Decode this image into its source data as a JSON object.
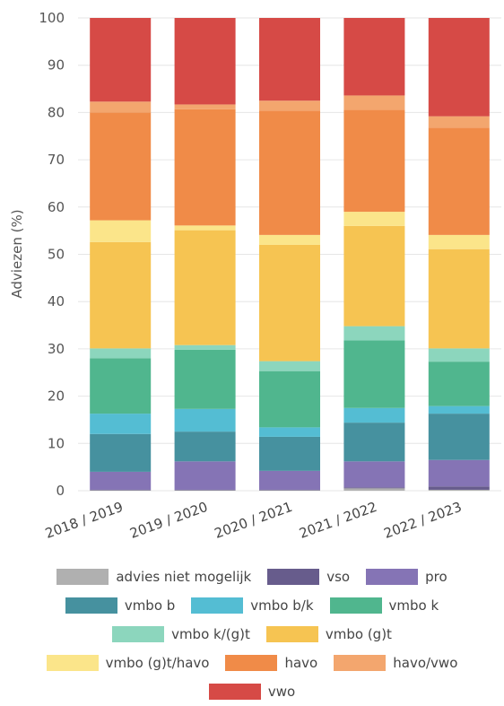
{
  "chart_data": {
    "type": "bar",
    "stacked": true,
    "ylabel": "Adviezen (%)",
    "ylim": [
      0,
      100
    ],
    "yticks": [
      "0",
      "10",
      "20",
      "30",
      "40",
      "50",
      "60",
      "70",
      "80",
      "90",
      "100"
    ],
    "grid": "horizontal",
    "legend_position": "bottom",
    "categories": [
      "2018 / 2019",
      "2019 / 2020",
      "2020 / 2021",
      "2021 / 2022",
      "2022 / 2023"
    ],
    "series": [
      {
        "name": "advies niet mogelijk",
        "color": "#b0b0b0",
        "values": [
          0.1,
          0.1,
          0.1,
          0.5,
          0.2
        ]
      },
      {
        "name": "vso",
        "color": "#675c8c",
        "values": [
          0.1,
          0.1,
          0.1,
          0.2,
          0.7
        ]
      },
      {
        "name": "pro",
        "color": "#8574b5",
        "values": [
          3.8,
          6.0,
          4.0,
          5.5,
          5.6
        ]
      },
      {
        "name": "vmbo b",
        "color": "#46919f",
        "values": [
          8.0,
          6.3,
          7.2,
          8.2,
          9.8
        ]
      },
      {
        "name": "vmbo b/k",
        "color": "#54bdd3",
        "values": [
          4.3,
          4.8,
          2.0,
          3.1,
          1.6
        ]
      },
      {
        "name": "vmbo k",
        "color": "#50b68e",
        "values": [
          11.7,
          12.5,
          11.9,
          14.3,
          9.4
        ]
      },
      {
        "name": "vmbo k/(g)t",
        "color": "#8cd6bd",
        "values": [
          2.1,
          1.0,
          2.1,
          3.0,
          2.8
        ]
      },
      {
        "name": "vmbo (g)t",
        "color": "#f6c452",
        "values": [
          22.5,
          24.3,
          24.6,
          21.2,
          21.0
        ]
      },
      {
        "name": "vmbo (g)t/havo",
        "color": "#fbe58a",
        "values": [
          4.6,
          1.0,
          2.1,
          3.0,
          3.0
        ]
      },
      {
        "name": "havo",
        "color": "#f08b48",
        "values": [
          22.8,
          24.6,
          26.3,
          21.6,
          22.7
        ]
      },
      {
        "name": "havo/vwo",
        "color": "#f3a66e",
        "values": [
          2.3,
          1.0,
          2.1,
          3.0,
          2.4
        ]
      },
      {
        "name": "vwo",
        "color": "#d64a46",
        "values": [
          17.7,
          18.3,
          17.5,
          16.4,
          20.8
        ]
      }
    ]
  }
}
